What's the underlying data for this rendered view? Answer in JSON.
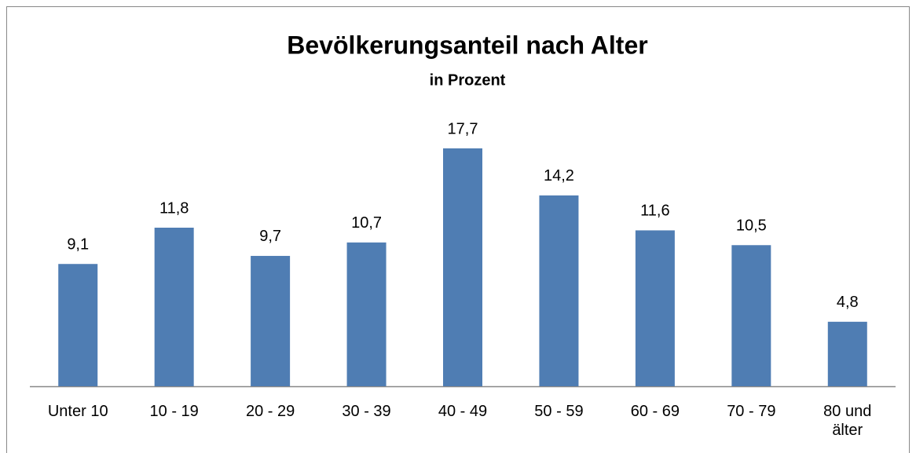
{
  "chart_data": {
    "type": "bar",
    "title": "Bevölkerungsanteil nach Alter",
    "subtitle": "in Prozent",
    "categories": [
      "Unter 10",
      "10 - 19",
      "20 - 29",
      "30 - 39",
      "40 - 49",
      "50 - 59",
      "60 - 69",
      "70 - 79",
      "80 und älter"
    ],
    "values": [
      9.1,
      11.8,
      9.7,
      10.7,
      17.7,
      14.2,
      11.6,
      10.5,
      4.8
    ],
    "value_labels": [
      "9,1",
      "11,8",
      "9,7",
      "10,7",
      "17,7",
      "14,2",
      "11,6",
      "10,5",
      "4,8"
    ],
    "color": "#4f7db3"
  }
}
